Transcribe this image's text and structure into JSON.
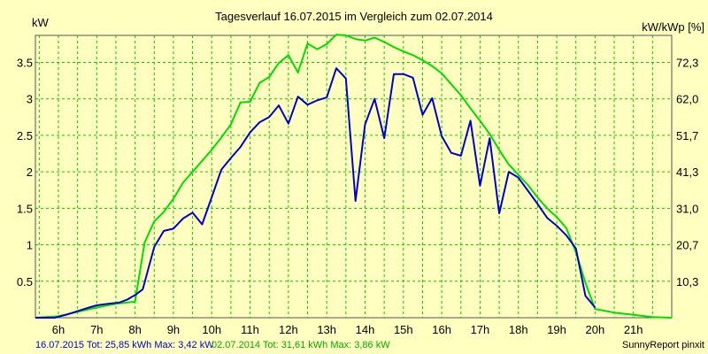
{
  "chart_data": {
    "type": "line",
    "title": "Tagesverlauf 16.07.2015 im Vergleich zum 02.07.2014",
    "ylabel": "kW",
    "ylabel_right": "kW/kWp [%]",
    "xlabel": "",
    "x_ticks": [
      "6h",
      "7h",
      "8h",
      "9h",
      "10h",
      "11h",
      "12h",
      "13h",
      "14h",
      "15h",
      "16h",
      "17h",
      "18h",
      "19h",
      "20h",
      "21h"
    ],
    "x_tick_hours": [
      6,
      7,
      8,
      9,
      10,
      11,
      12,
      13,
      14,
      15,
      16,
      17,
      18,
      19,
      20,
      21
    ],
    "xlim": [
      5.4,
      22.0
    ],
    "y_ticks": [
      "0.5",
      "1",
      "1.5",
      "2",
      "2.5",
      "3",
      "3.5"
    ],
    "y_tick_values": [
      0.5,
      1,
      1.5,
      2,
      2.5,
      3,
      3.5
    ],
    "y_right_ticks": [
      "10,3",
      "20,7",
      "31,0",
      "41,3",
      "51,7",
      "62,0",
      "72,3"
    ],
    "ylim": [
      0,
      3.87
    ],
    "grid": true,
    "background_color": "#ffffc0",
    "grid_color": "#00cc00",
    "series": [
      {
        "name": "16.07.2015",
        "color": "#0000cc",
        "x": [
          5.4,
          5.9,
          6.2,
          6.5,
          6.8,
          7.0,
          7.3,
          7.6,
          7.8,
          8.0,
          8.2,
          8.5,
          8.75,
          9.0,
          9.25,
          9.5,
          9.75,
          10.0,
          10.25,
          10.5,
          10.75,
          11.0,
          11.25,
          11.5,
          11.75,
          12.0,
          12.25,
          12.5,
          12.75,
          13.0,
          13.25,
          13.5,
          13.75,
          14.0,
          14.25,
          14.5,
          14.75,
          15.0,
          15.25,
          15.5,
          15.75,
          16.0,
          16.25,
          16.5,
          16.75,
          17.0,
          17.25,
          17.5,
          17.75,
          18.0,
          18.25,
          18.5,
          18.75,
          19.0,
          19.25,
          19.5,
          19.75,
          20.0
        ],
        "values": [
          0.0,
          0.0,
          0.04,
          0.09,
          0.14,
          0.17,
          0.19,
          0.21,
          0.25,
          0.31,
          0.39,
          0.97,
          1.19,
          1.22,
          1.36,
          1.44,
          1.28,
          1.65,
          2.03,
          2.19,
          2.34,
          2.54,
          2.68,
          2.75,
          2.91,
          2.66,
          3.03,
          2.92,
          2.98,
          3.02,
          3.42,
          3.28,
          1.6,
          2.65,
          3.0,
          2.46,
          3.34,
          3.34,
          3.29,
          2.78,
          3.01,
          2.49,
          2.26,
          2.22,
          2.7,
          1.81,
          2.46,
          1.43,
          2.0,
          1.92,
          1.74,
          1.56,
          1.37,
          1.26,
          1.13,
          0.95,
          0.3,
          0.14
        ]
      },
      {
        "name": "02.07.2014",
        "color": "#00dd00",
        "x": [
          5.4,
          6.0,
          6.5,
          7.0,
          7.5,
          8.0,
          8.25,
          8.5,
          8.75,
          9.0,
          9.25,
          9.5,
          9.75,
          10.0,
          10.25,
          10.5,
          10.75,
          11.0,
          11.25,
          11.5,
          11.75,
          12.0,
          12.25,
          12.5,
          12.75,
          13.0,
          13.25,
          13.5,
          13.75,
          14.0,
          14.25,
          14.5,
          14.75,
          15.0,
          15.25,
          15.5,
          15.75,
          16.0,
          16.25,
          16.5,
          16.75,
          17.0,
          17.25,
          17.5,
          17.75,
          18.0,
          18.25,
          18.5,
          18.75,
          19.0,
          19.25,
          19.5,
          19.75,
          20.0,
          20.5,
          21.0,
          21.5,
          22.0
        ],
        "values": [
          0.0,
          0.02,
          0.08,
          0.14,
          0.19,
          0.22,
          1.03,
          1.32,
          1.45,
          1.63,
          1.85,
          2.0,
          2.15,
          2.3,
          2.47,
          2.65,
          2.95,
          2.96,
          3.22,
          3.3,
          3.49,
          3.6,
          3.36,
          3.76,
          3.68,
          3.75,
          3.88,
          3.87,
          3.82,
          3.8,
          3.84,
          3.78,
          3.71,
          3.65,
          3.6,
          3.53,
          3.45,
          3.35,
          3.2,
          3.05,
          2.87,
          2.7,
          2.52,
          2.3,
          2.1,
          1.96,
          1.82,
          1.65,
          1.5,
          1.38,
          1.23,
          0.9,
          0.48,
          0.12,
          0.07,
          0.04,
          0.01,
          0.0
        ]
      }
    ]
  },
  "footer": {
    "series1_text": "16.07.2015 Tot: 25,85 kWh Max: 3,42 kW",
    "series2_text": "02.07.2014 Tot: 31,61 kWh Max: 3,86 kW",
    "brand": "SunnyReport pinxit"
  }
}
